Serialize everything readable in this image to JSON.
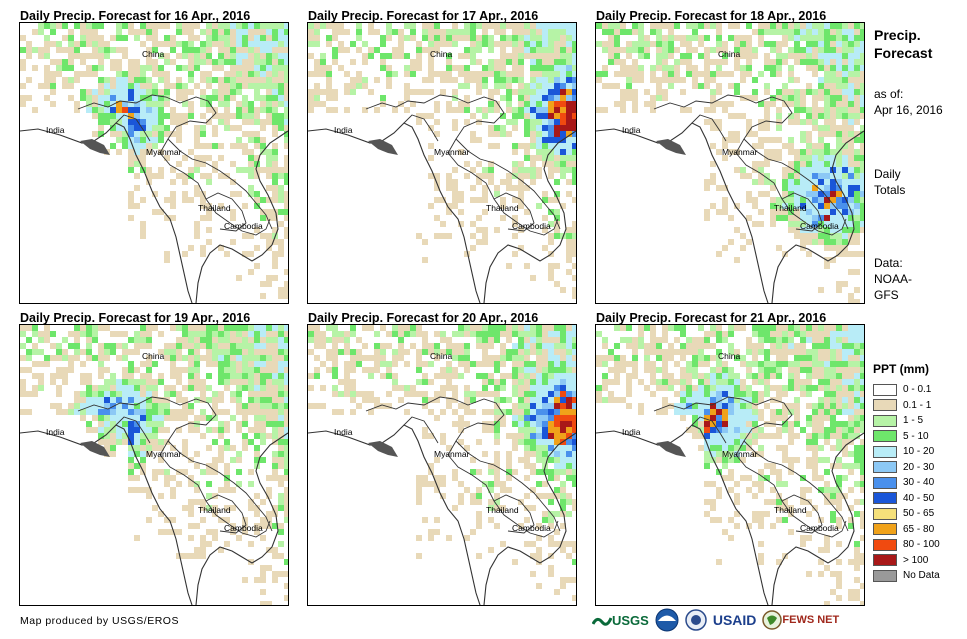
{
  "panels": [
    {
      "title": "Daily Precip. Forecast for 16 Apr., 2016",
      "labels": {
        "china": "China",
        "india": "India",
        "myanmar": "Myanmar",
        "thailand": "Thailand",
        "cambodia": "Cambodia"
      },
      "seed": 16,
      "hotspot": [
        0.38,
        0.34
      ]
    },
    {
      "title": "Daily Precip. Forecast for 17 Apr., 2016",
      "labels": {
        "china": "China",
        "india": "India",
        "myanmar": "Myanmar",
        "thailand": "Thailand",
        "cambodia": "Cambodia"
      },
      "seed": 17,
      "hotspot": [
        0.97,
        0.32
      ]
    },
    {
      "title": "Daily Precip. Forecast for 18 Apr., 2016",
      "labels": {
        "china": "China",
        "india": "India",
        "myanmar": "Myanmar",
        "thailand": "Thailand",
        "cambodia": "Cambodia"
      },
      "seed": 18,
      "hotspot": [
        0.85,
        0.62
      ]
    },
    {
      "title": "Daily Precip. Forecast for 19 Apr., 2016",
      "labels": {
        "china": "China",
        "india": "India",
        "myanmar": "Myanmar",
        "thailand": "Thailand",
        "cambodia": "Cambodia"
      },
      "seed": 19,
      "hotspot": [
        0.36,
        0.34
      ]
    },
    {
      "title": "Daily Precip. Forecast for 20 Apr., 2016",
      "labels": {
        "china": "China",
        "india": "India",
        "myanmar": "Myanmar",
        "thailand": "Thailand",
        "cambodia": "Cambodia"
      },
      "seed": 20,
      "hotspot": [
        0.95,
        0.33
      ]
    },
    {
      "title": "Daily Precip. Forecast for 21 Apr., 2016",
      "labels": {
        "china": "China",
        "india": "India",
        "myanmar": "Myanmar",
        "thailand": "Thailand",
        "cambodia": "Cambodia"
      },
      "seed": 21,
      "hotspot": [
        0.44,
        0.33
      ]
    }
  ],
  "sidebar": {
    "title_line1": "Precip.",
    "title_line2": "Forecast",
    "asof_line1": "as of:",
    "asof_line2": "Apr 16, 2016",
    "totals_line1": "Daily",
    "totals_line2": "Totals",
    "data_line1": "Data:",
    "data_line2": "NOAA-",
    "data_line3": "GFS"
  },
  "legend": {
    "title": "PPT (mm)",
    "items": [
      {
        "label": "0 - 0.1",
        "color": "#ffffff"
      },
      {
        "label": "0.1 - 1",
        "color": "#e8d9b8"
      },
      {
        "label": "1 - 5",
        "color": "#b6f3a6"
      },
      {
        "label": "5 - 10",
        "color": "#6ee66b"
      },
      {
        "label": "10 - 20",
        "color": "#b8ecf7"
      },
      {
        "label": "20 - 30",
        "color": "#8cc8f5"
      },
      {
        "label": "30 - 40",
        "color": "#4a90ec"
      },
      {
        "label": "40 - 50",
        "color": "#1a56d8"
      },
      {
        "label": "50 - 65",
        "color": "#f5e07a"
      },
      {
        "label": "65 - 80",
        "color": "#f0a21a"
      },
      {
        "label": "80 - 100",
        "color": "#f04a10"
      },
      {
        "label": "> 100",
        "color": "#a81818"
      },
      {
        "label": "No Data",
        "color": "#999999"
      }
    ]
  },
  "footer": {
    "credit": "Map produced by USGS/EROS"
  },
  "logos": {
    "usgs": "USGS",
    "usaid": "USAID",
    "fews": "FEWS NET"
  }
}
